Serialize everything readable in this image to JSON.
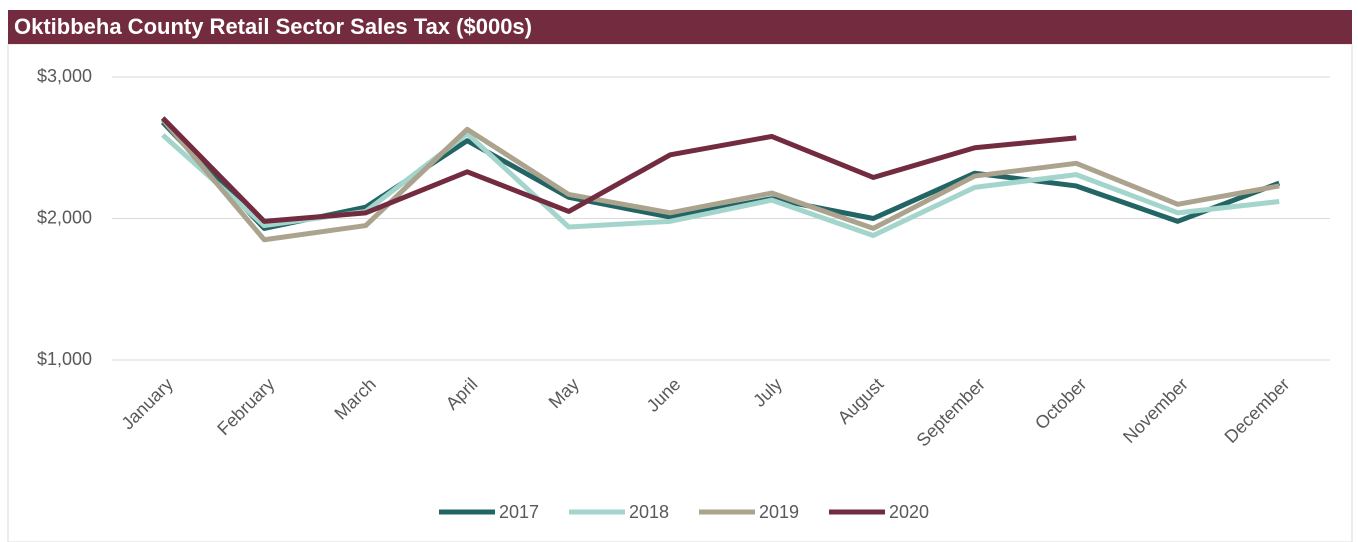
{
  "chart_data": {
    "type": "line",
    "title": "Oktibbeha County Retail Sector Sales Tax ($000s)",
    "categories": [
      "January",
      "February",
      "March",
      "April",
      "May",
      "June",
      "July",
      "August",
      "September",
      "October",
      "November",
      "December"
    ],
    "series": [
      {
        "name": "2017",
        "color": "#236465",
        "values": [
          2680,
          1930,
          2080,
          2550,
          2150,
          2010,
          2140,
          2000,
          2320,
          2230,
          1980,
          2250
        ]
      },
      {
        "name": "2018",
        "color": "#a3d5cc",
        "values": [
          2590,
          1950,
          2050,
          2600,
          1940,
          1980,
          2130,
          1880,
          2220,
          2310,
          2040,
          2120
        ]
      },
      {
        "name": "2019",
        "color": "#aba38e",
        "values": [
          2700,
          1850,
          1950,
          2630,
          2170,
          2040,
          2180,
          1930,
          2300,
          2390,
          2100,
          2230
        ]
      },
      {
        "name": "2020",
        "color": "#722b3f",
        "values": [
          2710,
          1980,
          2040,
          2330,
          2050,
          2450,
          2580,
          2290,
          2500,
          2570,
          null,
          null
        ]
      }
    ],
    "ylim": [
      1000,
      3000
    ],
    "yticks": [
      {
        "value": 1000,
        "label": "$1,000"
      },
      {
        "value": 2000,
        "label": "$2,000"
      },
      {
        "value": 3000,
        "label": "$3,000"
      }
    ],
    "grid": true,
    "legend": "bottom"
  }
}
